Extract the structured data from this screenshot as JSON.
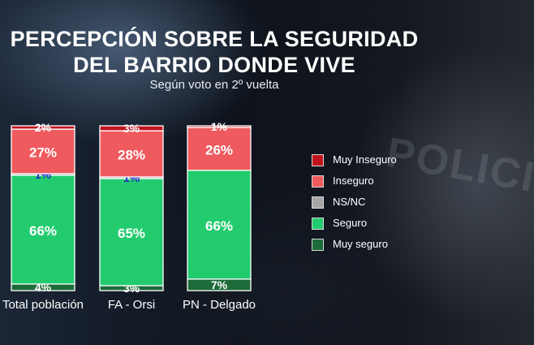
{
  "title_line1": "PERCEPCIÓN SOBRE LA SEGURIDAD",
  "title_line2": "DEL BARRIO DONDE VIVE",
  "subtitle": "Según voto en 2º vuelta",
  "background_text": "POLICIA",
  "chart_data": {
    "type": "bar",
    "stacked": true,
    "stacked_percent": true,
    "title": "PERCEPCIÓN SOBRE LA SEGURIDAD DEL BARRIO DONDE VIVE",
    "subtitle": "Según voto en 2º vuelta",
    "categories": [
      "Total población",
      "FA - Orsi",
      "PN - Delgado"
    ],
    "series": [
      {
        "name": "Muy seguro",
        "color": "#1e6b3a",
        "values": [
          4,
          3,
          7
        ],
        "labels": [
          "4%",
          "3%",
          "7%"
        ],
        "label_color": "#ffffff"
      },
      {
        "name": "Seguro",
        "color": "#22cc6e",
        "values": [
          66,
          65,
          66
        ],
        "labels": [
          "66%",
          "65%",
          "66%"
        ],
        "label_color": "#ffffff"
      },
      {
        "name": "NS/NC",
        "color": "#a6a6a6",
        "values": [
          1,
          1,
          0
        ],
        "labels": [
          "1%",
          "1%",
          ""
        ],
        "label_color": "#2a2ad0"
      },
      {
        "name": "Inseguro",
        "color": "#ef5a5e",
        "values": [
          27,
          28,
          26
        ],
        "labels": [
          "27%",
          "28%",
          "26%"
        ],
        "label_color": "#ffffff"
      },
      {
        "name": "Muy Inseguro",
        "color": "#c0141d",
        "values": [
          2,
          3,
          1
        ],
        "labels": [
          "2%",
          "3%",
          "1%"
        ],
        "label_color": "#ffffff"
      }
    ],
    "legend_order": [
      "Muy Inseguro",
      "Inseguro",
      "NS/NC",
      "Seguro",
      "Muy seguro"
    ],
    "legend_position": "right",
    "ylim": [
      0,
      100
    ],
    "grid": false
  }
}
